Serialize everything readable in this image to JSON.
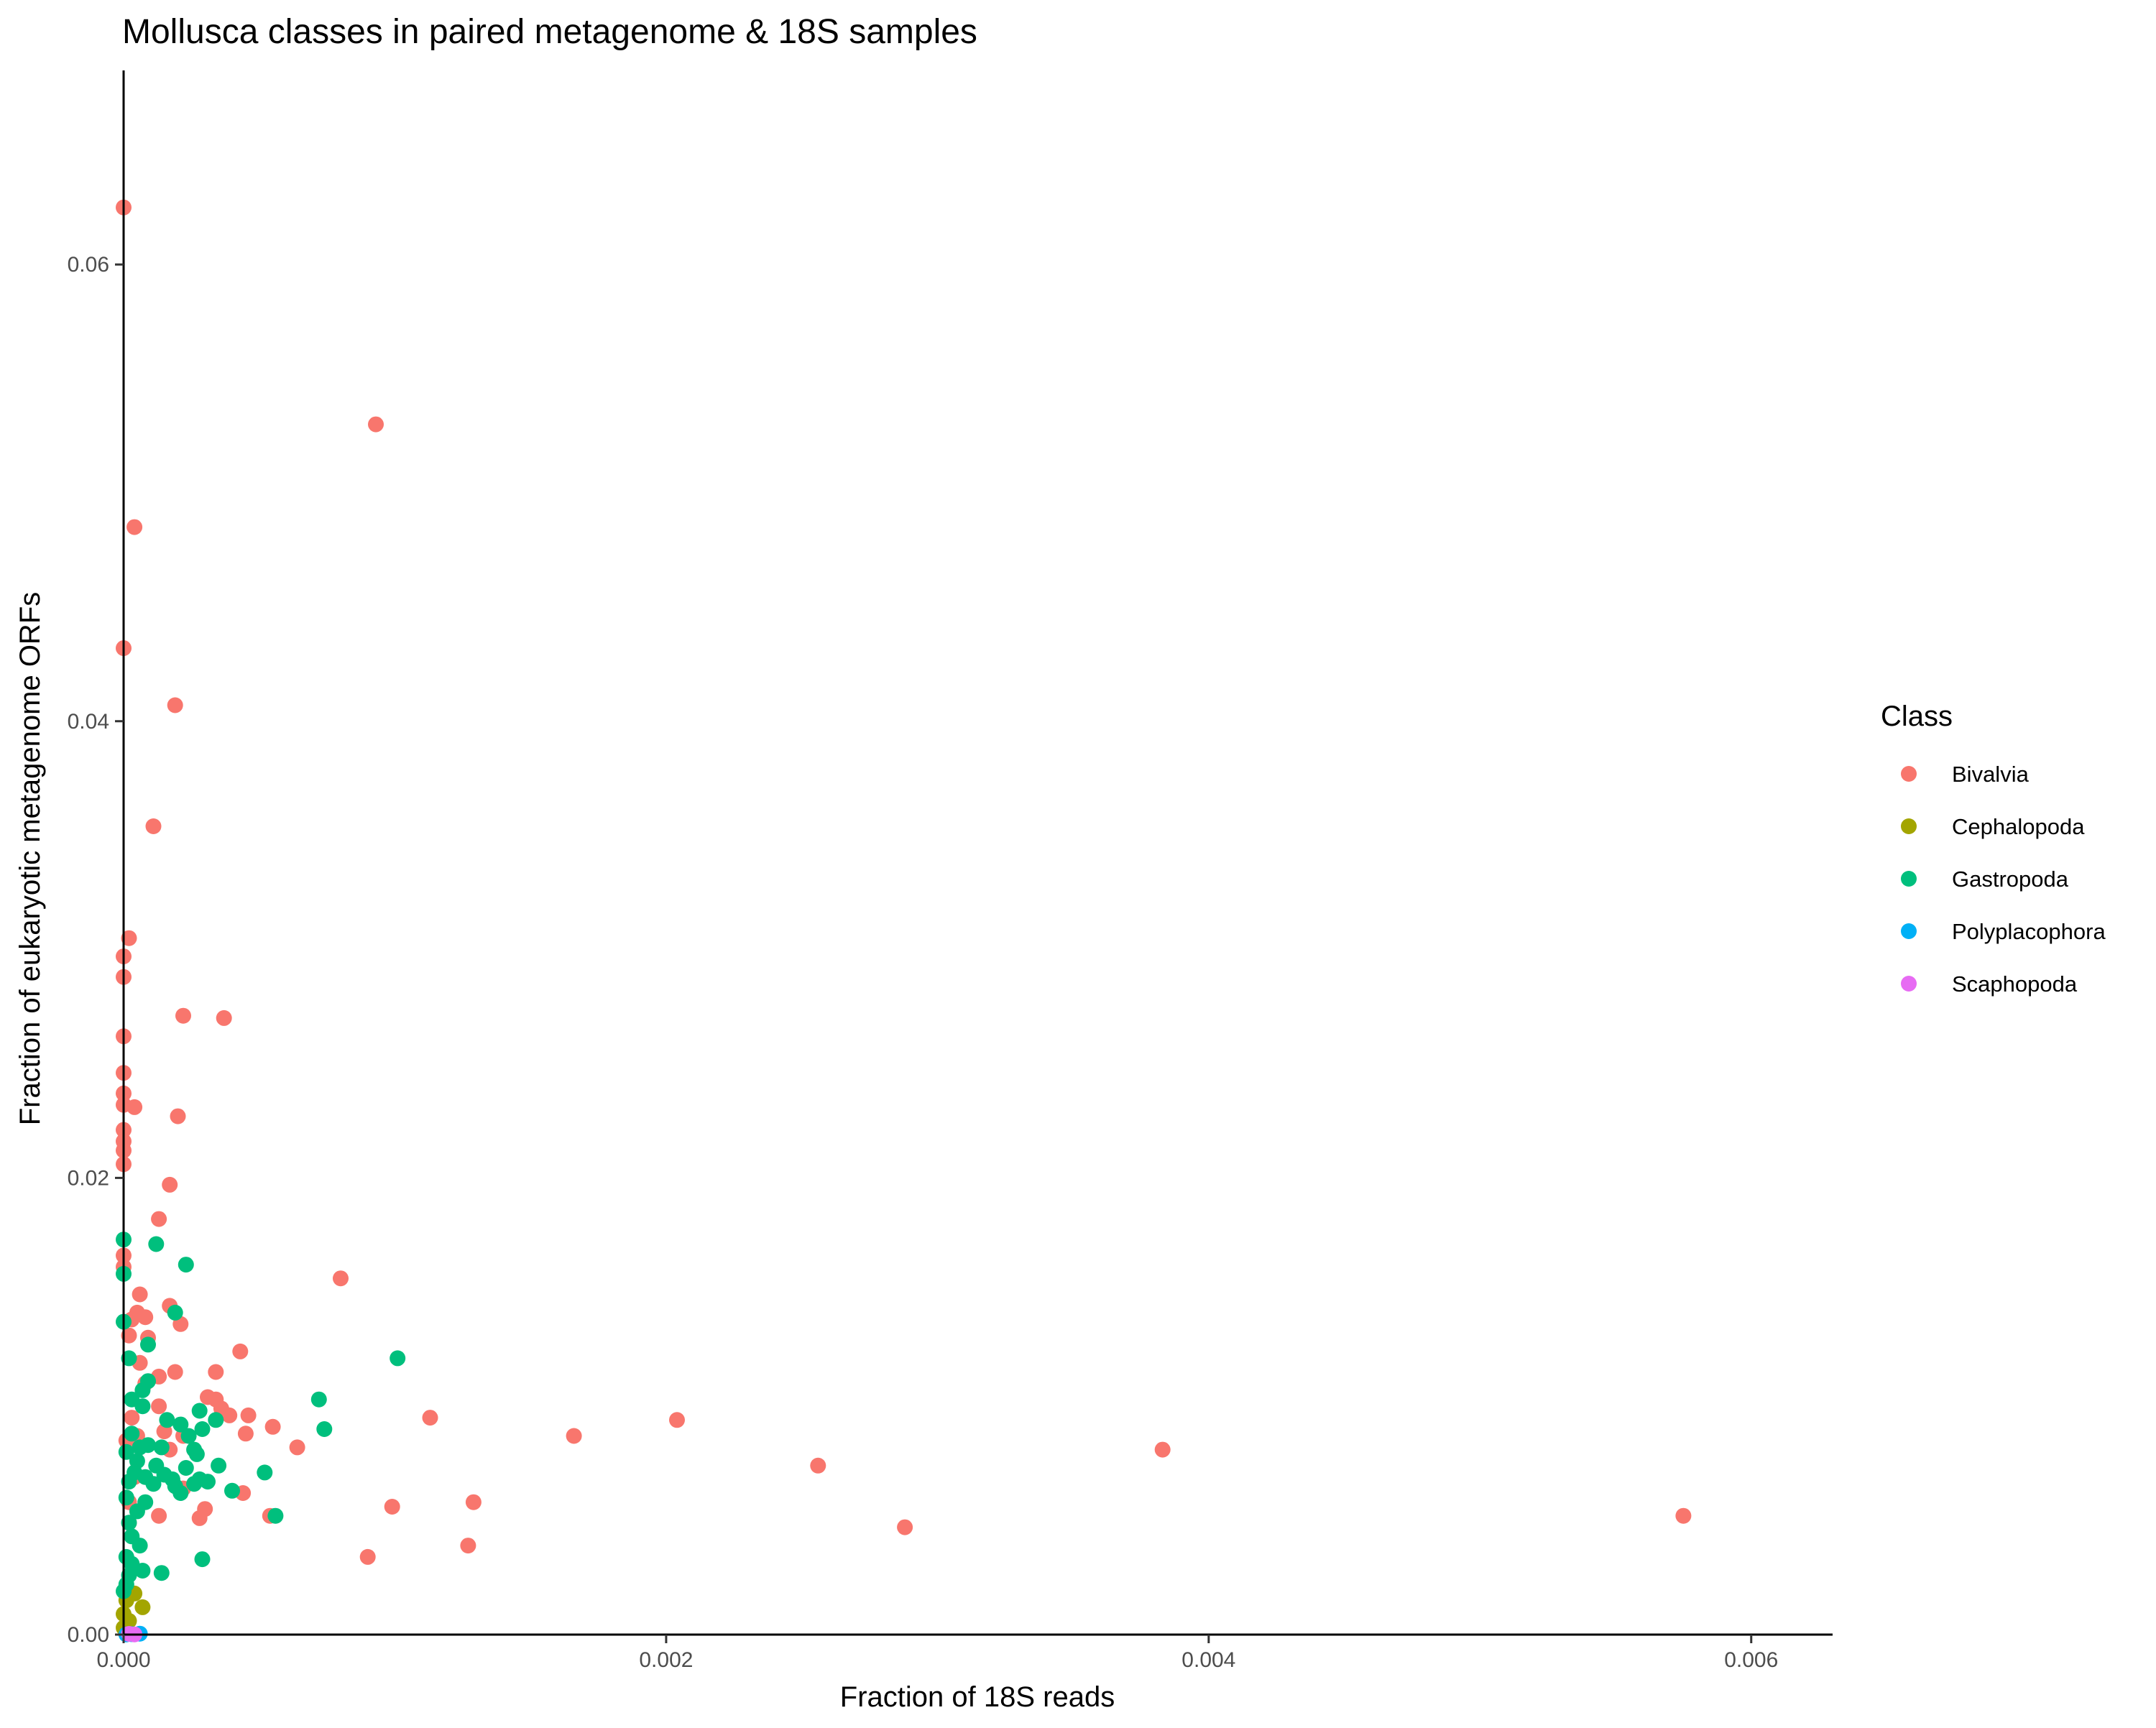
{
  "chart_data": {
    "type": "scatter",
    "title": "Mollusca classes in paired metagenome & 18S samples",
    "xlabel": "Fraction of 18S reads",
    "ylabel": "Fraction of eukaryotic metagenome ORFs",
    "xlim": [
      0,
      0.0063
    ],
    "ylim": [
      0,
      0.0685
    ],
    "x_ticks": [
      0,
      0.002,
      0.004,
      0.006
    ],
    "x_tick_labels": [
      "0.000",
      "0.002",
      "0.004",
      "0.006"
    ],
    "y_ticks": [
      0,
      0.02,
      0.04,
      0.06
    ],
    "y_tick_labels": [
      "0.00",
      "0.02",
      "0.04",
      "0.06"
    ],
    "grid": false,
    "legend": {
      "title": "Class",
      "position": "right"
    },
    "series": [
      {
        "name": "Bivalvia",
        "color": "#F8766D",
        "points": [
          [
            0,
            0.0625
          ],
          [
            0.00093,
            0.053
          ],
          [
            4e-05,
            0.0485
          ],
          [
            0,
            0.0432
          ],
          [
            0.00019,
            0.0407
          ],
          [
            0.00011,
            0.0354
          ],
          [
            2e-05,
            0.0305
          ],
          [
            0,
            0.0297
          ],
          [
            0,
            0.0288
          ],
          [
            0.00022,
            0.0271
          ],
          [
            0.00037,
            0.027
          ],
          [
            0,
            0.0262
          ],
          [
            0,
            0.0246
          ],
          [
            0,
            0.0237
          ],
          [
            4e-05,
            0.0231
          ],
          [
            0,
            0.0232
          ],
          [
            0.0002,
            0.0227
          ],
          [
            0,
            0.0221
          ],
          [
            0,
            0.0216
          ],
          [
            0,
            0.0212
          ],
          [
            0,
            0.0206
          ],
          [
            0.00017,
            0.0197
          ],
          [
            0.00013,
            0.0182
          ],
          [
            0,
            0.0166
          ],
          [
            0,
            0.0161
          ],
          [
            0.0008,
            0.0156
          ],
          [
            6e-05,
            0.0149
          ],
          [
            0.00017,
            0.0144
          ],
          [
            5e-05,
            0.0141
          ],
          [
            8e-05,
            0.0139
          ],
          [
            3e-05,
            0.0138
          ],
          [
            0.00021,
            0.0136
          ],
          [
            2e-05,
            0.0131
          ],
          [
            9e-05,
            0.013
          ],
          [
            0.00043,
            0.0124
          ],
          [
            6e-05,
            0.0119
          ],
          [
            0.00019,
            0.0115
          ],
          [
            0.00034,
            0.0115
          ],
          [
            0.00013,
            0.0113
          ],
          [
            8e-05,
            0.011
          ],
          [
            0.00031,
            0.0104
          ],
          [
            0.00034,
            0.0103
          ],
          [
            0.00013,
            0.01
          ],
          [
            0.00036,
            0.0099
          ],
          [
            0.00039,
            0.0096
          ],
          [
            0.00046,
            0.0096
          ],
          [
            0.00113,
            0.0095
          ],
          [
            0.00204,
            0.0094
          ],
          [
            3e-05,
            0.0095
          ],
          [
            0.00055,
            0.0091
          ],
          [
            0.00015,
            0.0089
          ],
          [
            0.00045,
            0.0088
          ],
          [
            0.00166,
            0.0087
          ],
          [
            0.00022,
            0.0087
          ],
          [
            5e-05,
            0.0087
          ],
          [
            1e-05,
            0.0085
          ],
          [
            0.00064,
            0.0082
          ],
          [
            0.00383,
            0.0081
          ],
          [
            0.00017,
            0.0081
          ],
          [
            0.00256,
            0.0074
          ],
          [
            4e-05,
            0.0069
          ],
          [
            0.00044,
            0.0062
          ],
          [
            0.00022,
            0.0064
          ],
          [
            0.00129,
            0.0058
          ],
          [
            2e-05,
            0.0058
          ],
          [
            0.00099,
            0.0056
          ],
          [
            0.0003,
            0.0055
          ],
          [
            0.00575,
            0.0052
          ],
          [
            0.00054,
            0.0052
          ],
          [
            0.00028,
            0.0051
          ],
          [
            0.00013,
            0.0052
          ],
          [
            0.00288,
            0.0047
          ],
          [
            0.00127,
            0.0039
          ],
          [
            0.0009,
            0.0034
          ],
          [
            2e-05,
            0.0049
          ]
        ]
      },
      {
        "name": "Cephalopoda",
        "color": "#A3A500",
        "points": [
          [
            7e-05,
            0.0012
          ],
          [
            4e-05,
            0.0018
          ],
          [
            1e-05,
            0.0015
          ],
          [
            0,
            0.0009
          ],
          [
            2e-05,
            0.0006
          ],
          [
            0,
            0.0003
          ]
        ]
      },
      {
        "name": "Gastropoda",
        "color": "#00BF7D",
        "points": [
          [
            0,
            0.0173
          ],
          [
            0.00012,
            0.0171
          ],
          [
            0.00023,
            0.0162
          ],
          [
            0,
            0.0158
          ],
          [
            0.00019,
            0.0141
          ],
          [
            0,
            0.0137
          ],
          [
            9e-05,
            0.0127
          ],
          [
            0.00101,
            0.0121
          ],
          [
            2e-05,
            0.0121
          ],
          [
            9e-05,
            0.0111
          ],
          [
            7e-05,
            0.0107
          ],
          [
            0.00072,
            0.0103
          ],
          [
            3e-05,
            0.0103
          ],
          [
            7e-05,
            0.01
          ],
          [
            0.00028,
            0.0098
          ],
          [
            0.00016,
            0.0094
          ],
          [
            0.00034,
            0.0094
          ],
          [
            0.00021,
            0.0092
          ],
          [
            0.00074,
            0.009
          ],
          [
            0.00029,
            0.009
          ],
          [
            3e-05,
            0.0088
          ],
          [
            0.00024,
            0.0087
          ],
          [
            9e-05,
            0.0083
          ],
          [
            6e-05,
            0.0082
          ],
          [
            0.00014,
            0.0082
          ],
          [
            0.00026,
            0.0081
          ],
          [
            0.00027,
            0.0079
          ],
          [
            1e-05,
            0.008
          ],
          [
            5e-05,
            0.0076
          ],
          [
            0.00012,
            0.0074
          ],
          [
            0.00035,
            0.0074
          ],
          [
            0.00023,
            0.0073
          ],
          [
            0.00052,
            0.0071
          ],
          [
            4e-05,
            0.0071
          ],
          [
            0.00015,
            0.007
          ],
          [
            8e-05,
            0.0069
          ],
          [
            0.00018,
            0.0068
          ],
          [
            0.00028,
            0.0068
          ],
          [
            0.00031,
            0.0067
          ],
          [
            2e-05,
            0.0067
          ],
          [
            0.00011,
            0.0066
          ],
          [
            0.00019,
            0.0065
          ],
          [
            0.00026,
            0.0066
          ],
          [
            0.0004,
            0.0063
          ],
          [
            0.00021,
            0.0062
          ],
          [
            1e-05,
            0.006
          ],
          [
            8e-05,
            0.0058
          ],
          [
            5e-05,
            0.0054
          ],
          [
            0.00056,
            0.0052
          ],
          [
            2e-05,
            0.0049
          ],
          [
            3e-05,
            0.0043
          ],
          [
            6e-05,
            0.0039
          ],
          [
            1e-05,
            0.0034
          ],
          [
            0.00029,
            0.0033
          ],
          [
            3e-05,
            0.0031
          ],
          [
            7e-05,
            0.0028
          ],
          [
            0.00014,
            0.0027
          ],
          [
            2e-05,
            0.0026
          ],
          [
            1e-05,
            0.0022
          ],
          [
            0,
            0.0019
          ]
        ]
      },
      {
        "name": "Polyplacophora",
        "color": "#00B0F6",
        "points": [
          [
            6e-05,
            4e-05
          ],
          [
            3e-05,
            2e-05
          ],
          [
            1e-05,
            1e-05
          ]
        ]
      },
      {
        "name": "Scaphopoda",
        "color": "#E76BF3",
        "points": [
          [
            2e-05,
            3e-05
          ],
          [
            4e-05,
            1e-05
          ]
        ]
      }
    ]
  }
}
